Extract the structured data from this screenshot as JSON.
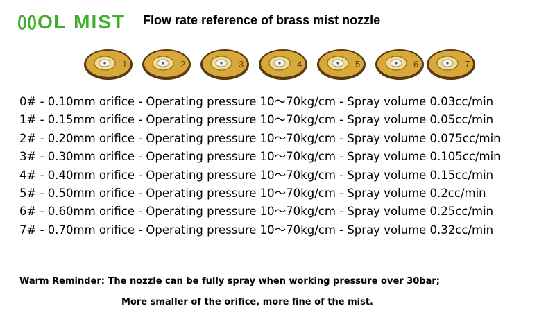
{
  "logo": {
    "text": "OL MIST",
    "brand_color": "#3fae2a"
  },
  "title": "Flow rate reference of brass mist nozzle",
  "nozzles": [
    {
      "label": "1"
    },
    {
      "label": "2"
    },
    {
      "label": "3"
    },
    {
      "label": "4"
    },
    {
      "label": "5"
    },
    {
      "label": "6"
    },
    {
      "label": "7"
    }
  ],
  "rows": [
    "0# - 0.10mm orifice - Operating pressure 10～70kg/cm - Spray volume 0.03cc/min",
    "1# - 0.15mm orifice - Operating pressure 10～70kg/cm - Spray volume 0.05cc/min",
    "2# - 0.20mm orifice - Operating pressure 10～70kg/cm - Spray volume 0.075cc/min",
    "3# - 0.30mm orifice - Operating pressure 10～70kg/cm - Spray volume 0.105cc/min",
    "4# - 0.40mm orifice - Operating pressure 10～70kg/cm - Spray volume 0.15cc/min",
    "5# - 0.50mm orifice - Operating pressure 10～70kg/cm - Spray volume 0.2cc/min",
    "6# - 0.60mm orifice - Operating pressure 10～70kg/cm - Spray volume 0.25cc/min",
    "7# - 0.70mm orifice - Operating pressure 10～70kg/cm - Spray volume 0.32cc/min"
  ],
  "notes": {
    "line1": "Warm Reminder: The nozzle can be fully spray when working pressure over 30bar;",
    "line2": "More smaller of the orifice, more fine of the mist."
  },
  "colors": {
    "brass": "#d8a93a",
    "brass_dark": "#5a3a10",
    "brass_light": "#f3dc8a"
  }
}
